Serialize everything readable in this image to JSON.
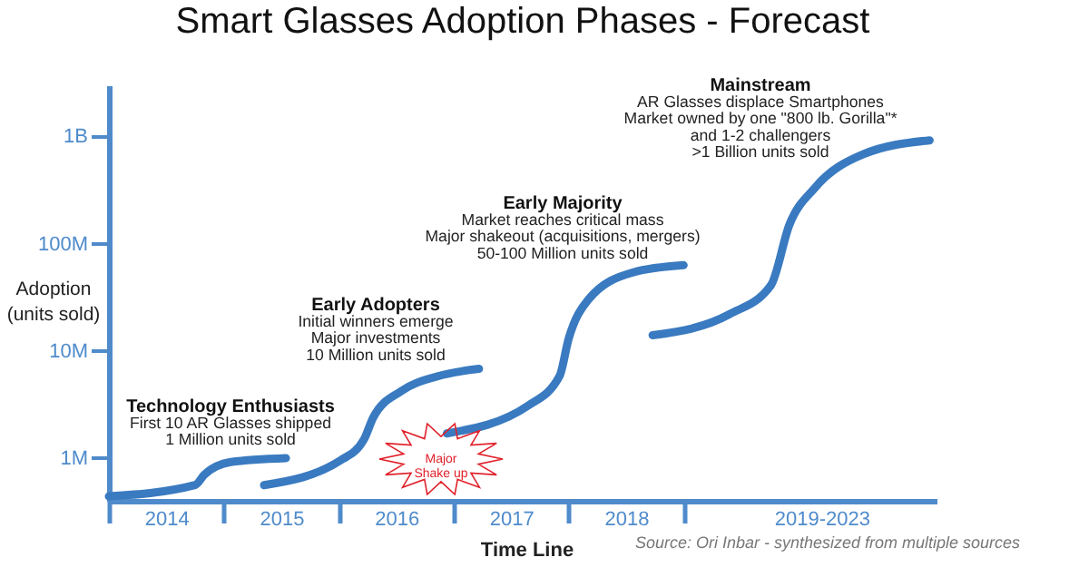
{
  "chart_data": {
    "type": "line",
    "title": "Smart Glasses Adoption Phases - Forecast",
    "xlabel": "Time Line",
    "ylabel": "Adoption\n(units sold)",
    "log": "y",
    "grid": false,
    "legend": false,
    "marker": "none",
    "line_style": "solid",
    "xlim": [
      2014,
      2021.2
    ],
    "xticks": [
      {
        "value": 2014,
        "label": null
      },
      {
        "value": 2015,
        "label": null
      },
      {
        "value": 2016,
        "label": null
      },
      {
        "value": 2017,
        "label": null
      },
      {
        "value": 2018,
        "label": null
      },
      {
        "value": 2019,
        "label": null
      },
      {
        "value": 2014.5,
        "label": "2014"
      },
      {
        "value": 2015.5,
        "label": "2015"
      },
      {
        "value": 2016.5,
        "label": "2016"
      },
      {
        "value": 2017.5,
        "label": "2017"
      },
      {
        "value": 2018.5,
        "label": "2018"
      },
      {
        "value": 2020.2,
        "label": "2019-2023"
      }
    ],
    "ylim": [
      400000,
      3000000000
    ],
    "yticks": [
      {
        "value": 1000000,
        "label": "1M"
      },
      {
        "value": 10000000,
        "label": "10M"
      },
      {
        "value": 100000000,
        "label": "100M"
      },
      {
        "value": 1000000000,
        "label": "1B"
      }
    ],
    "series": [
      {
        "color": "#3a7ac0",
        "x": [
          2014,
          2014.75,
          2014.83,
          2015.06,
          2015.54
        ],
        "values": [
          440000,
          560000,
          700000,
          920000,
          1000000
        ]
      },
      {
        "color": "#3a7ac0",
        "x": [
          2015.35,
          2016.02,
          2016.22,
          2016.3,
          2016.54,
          2016.86,
          2017.22
        ],
        "values": [
          560000,
          960000,
          1500000,
          2400000,
          4200000,
          5800000,
          6800000
        ]
      },
      {
        "color": "#3a7ac0",
        "x": [
          2016.94,
          2017.65,
          2017.92,
          2018.0,
          2018.17,
          2018.56,
          2019.0
        ],
        "values": [
          1700000,
          3100000,
          5800000,
          13000000,
          30000000,
          54000000,
          63000000
        ]
      },
      {
        "color": "#3a7ac0",
        "x": [
          2018.73,
          2019.4,
          2019.76,
          2019.92,
          2020.14,
          2020.56,
          2021.14
        ],
        "values": [
          14000000,
          22000000,
          41000000,
          150000000,
          330000000,
          680000000,
          920000000
        ]
      }
    ],
    "annotations": [
      "Technology Enthusiasts",
      "First 10 AR Glasses shipped\n1 Million units sold",
      "Early Adopters",
      "Initial winners emerge\nMajor investments\n10 Million units sold",
      "Early Majority",
      "Market reaches critical mass\nMajor shakeout (acquisitions, mergers)\n50-100 Million units sold",
      "Mainstream",
      "AR Glasses displace Smartphones\nMarket owned by one \"800 lb. Gorilla\"*\nand 1-2 challengers\n>1 Billion units sold",
      "Major\nShake up",
      "Source: Ori Inbar - synthesized from multiple sources"
    ]
  }
}
